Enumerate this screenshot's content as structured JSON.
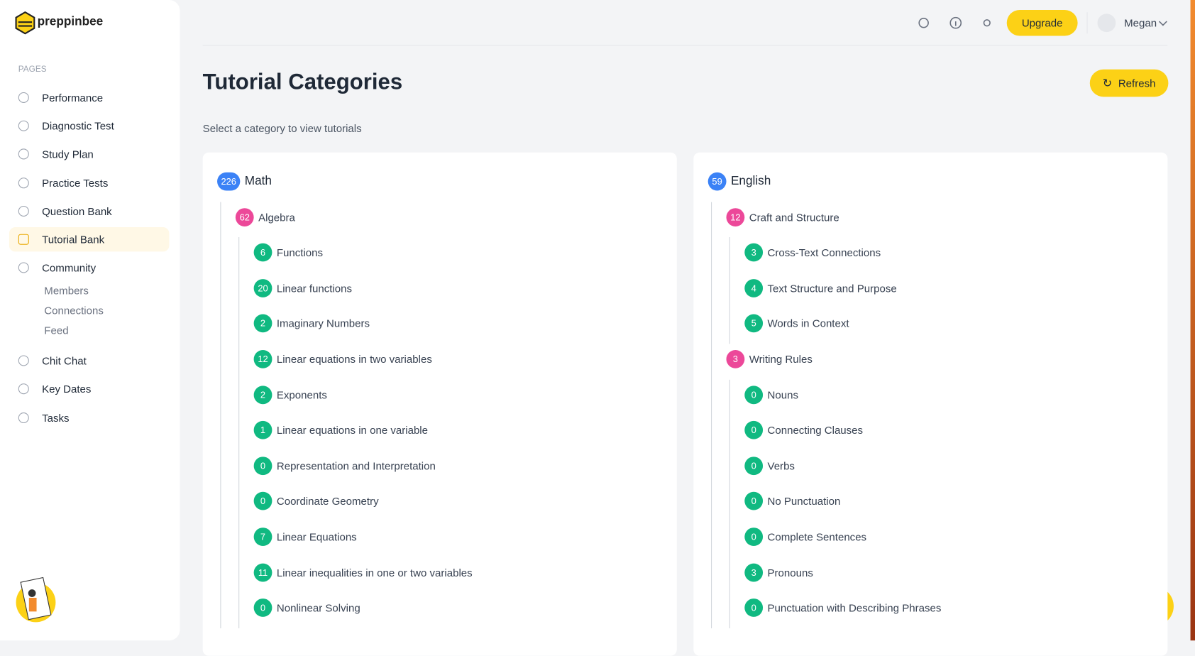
{
  "brand": "preppinbee",
  "sidebar": {
    "section_label": "PAGES",
    "items": [
      "Performance",
      "Diagnostic Test",
      "Study Plan",
      "Practice Tests",
      "Question Bank",
      "Tutorial Bank",
      "Community"
    ],
    "active": "Tutorial Bank",
    "community_children": [
      "Members",
      "Connections",
      "Feed"
    ],
    "items_after": [
      "Chit Chat",
      "Key Dates",
      "Tasks"
    ]
  },
  "header": {
    "upgrade": "Upgrade",
    "user": "Megan"
  },
  "page": {
    "title": "Tutorial Categories",
    "subtitle": "Select a category to view tutorials",
    "refresh": "Refresh"
  },
  "categories": [
    {
      "count": 226,
      "name": "Math",
      "children": [
        {
          "count": 62,
          "name": "Algebra",
          "children": [
            {
              "count": 6,
              "name": "Functions"
            },
            {
              "count": 20,
              "name": "Linear functions"
            },
            {
              "count": 2,
              "name": "Imaginary Numbers"
            },
            {
              "count": 12,
              "name": "Linear equations in two variables"
            },
            {
              "count": 2,
              "name": "Exponents"
            },
            {
              "count": 1,
              "name": "Linear equations in one variable"
            },
            {
              "count": 0,
              "name": "Representation and Interpretation"
            },
            {
              "count": 0,
              "name": "Coordinate Geometry"
            },
            {
              "count": 7,
              "name": "Linear Equations"
            },
            {
              "count": 11,
              "name": "Linear inequalities in one or two variables"
            },
            {
              "count": 0,
              "name": "Nonlinear Solving"
            }
          ]
        }
      ]
    },
    {
      "count": 59,
      "name": "English",
      "children": [
        {
          "count": 12,
          "name": "Craft and Structure",
          "children": [
            {
              "count": 3,
              "name": "Cross-Text Connections"
            },
            {
              "count": 4,
              "name": "Text Structure and Purpose"
            },
            {
              "count": 5,
              "name": "Words in Context"
            }
          ]
        },
        {
          "count": 3,
          "name": "Writing Rules",
          "children": [
            {
              "count": 0,
              "name": "Nouns"
            },
            {
              "count": 0,
              "name": "Connecting Clauses"
            },
            {
              "count": 0,
              "name": "Verbs"
            },
            {
              "count": 0,
              "name": "No Punctuation"
            },
            {
              "count": 0,
              "name": "Complete Sentences"
            },
            {
              "count": 3,
              "name": "Pronouns"
            },
            {
              "count": 0,
              "name": "Punctuation with Describing Phrases"
            }
          ]
        }
      ]
    }
  ]
}
